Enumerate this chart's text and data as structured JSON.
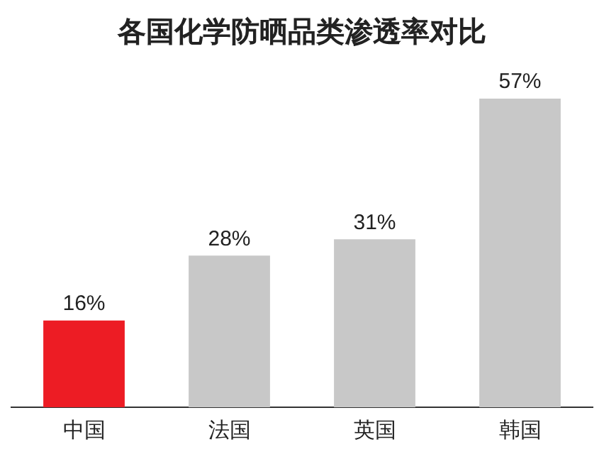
{
  "chart_data": {
    "type": "bar",
    "title": "各国化学防晒品类渗透率对比",
    "categories": [
      "中国",
      "法国",
      "英国",
      "韩国"
    ],
    "values": [
      16,
      28,
      31,
      57
    ],
    "colors": [
      "#ed1c24",
      "#c8c8c8",
      "#c8c8c8",
      "#c8c8c8"
    ],
    "value_labels": [
      "16%",
      "28%",
      "31%",
      "57%"
    ]
  }
}
